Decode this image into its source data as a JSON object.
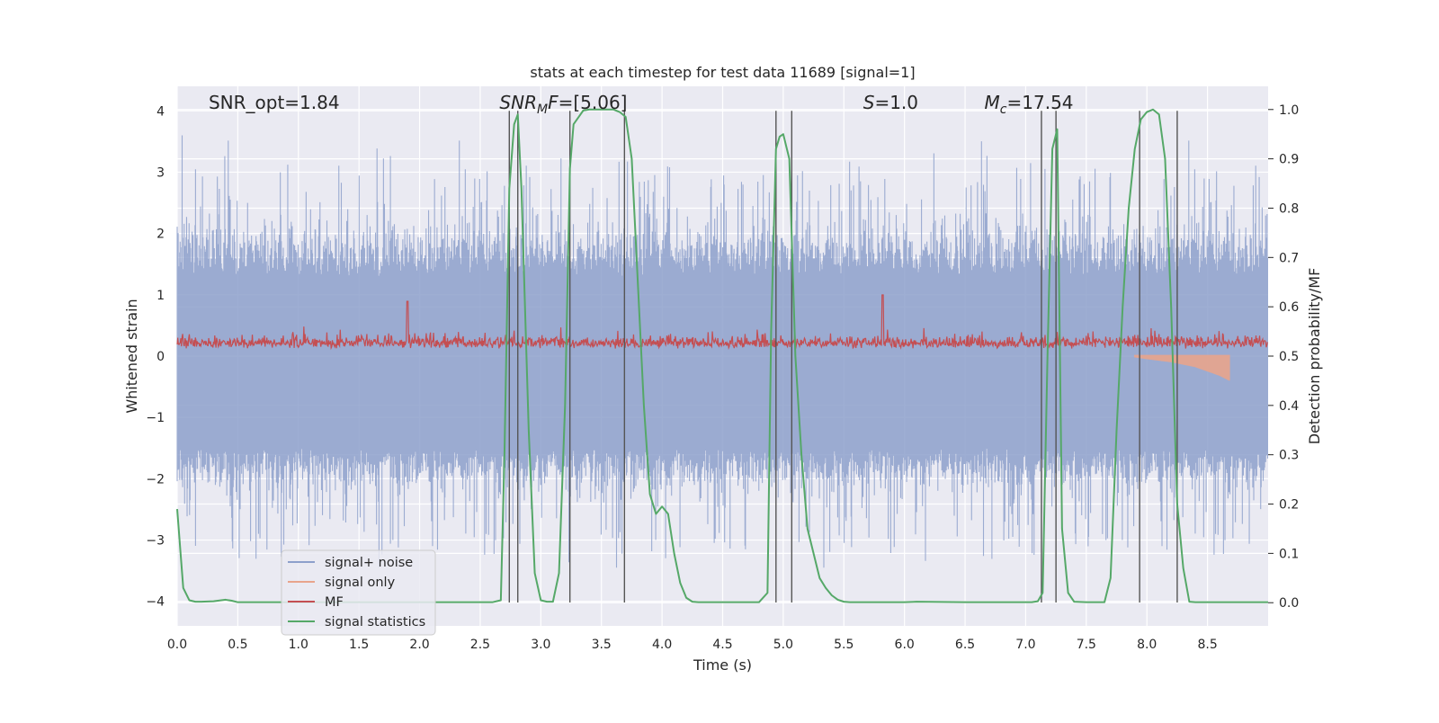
{
  "chart_data": {
    "type": "line",
    "title": "stats at each timestep for test data 11689 [signal=1]",
    "xlabel": "Time (s)",
    "ylabel": "Whitened strain",
    "y2label": "Detection probability/MF",
    "xlim": [
      0,
      9.0
    ],
    "ylim": [
      -4.4,
      4.4
    ],
    "y2lim": [
      -0.047,
      1.047
    ],
    "x_ticks": [
      0.0,
      0.5,
      1.0,
      1.5,
      2.0,
      2.5,
      3.0,
      3.5,
      4.0,
      4.5,
      5.0,
      5.5,
      6.0,
      6.5,
      7.0,
      7.5,
      8.0,
      8.5
    ],
    "x_tick_labels": [
      "0.0",
      "0.5",
      "1.0",
      "1.5",
      "2.0",
      "2.5",
      "3.0",
      "3.5",
      "4.0",
      "4.5",
      "5.0",
      "5.5",
      "6.0",
      "6.5",
      "7.0",
      "7.5",
      "8.0",
      "8.5"
    ],
    "y_ticks": [
      4,
      3,
      2,
      1,
      0,
      -1,
      -2,
      -3,
      -4
    ],
    "y_tick_labels": [
      "4",
      "3",
      "2",
      "1",
      "0",
      "−1",
      "−2",
      "−3",
      "−4"
    ],
    "y2_ticks": [
      1.0,
      0.9,
      0.8,
      0.7,
      0.6,
      0.5,
      0.4,
      0.3,
      0.2,
      0.1,
      0.0
    ],
    "y2_tick_labels": [
      "1.0",
      "0.9",
      "0.8",
      "0.7",
      "0.6",
      "0.5",
      "0.4",
      "0.3",
      "0.2",
      "0.1",
      "0.0"
    ],
    "grid": true,
    "legend": {
      "position": "lower-left",
      "entries": [
        {
          "label": "signal+ noise",
          "color": "#8da0cb"
        },
        {
          "label": "signal only",
          "color": "#e8a48c"
        },
        {
          "label": "MF",
          "color": "#c44e52"
        },
        {
          "label": "signal statistics",
          "color": "#55a868"
        }
      ]
    },
    "annotations": [
      {
        "key": "snr_opt",
        "text": "SNR_opt=1.84",
        "x": 0.2
      },
      {
        "key": "snr_mf",
        "text": "SNR_MF=[5.06]",
        "x": 2.6
      },
      {
        "key": "s",
        "text": "S=1.0",
        "x": 5.6
      },
      {
        "key": "mc",
        "text": "M_c=17.54",
        "x": 6.6
      }
    ],
    "vlines_x": [
      2.74,
      2.81,
      3.24,
      3.69,
      4.94,
      5.07,
      7.13,
      7.25,
      7.94,
      8.25
    ],
    "series": [
      {
        "name": "signal statistics",
        "axis": "right",
        "color": "#55a868",
        "x": [
          0.0,
          0.05,
          0.1,
          0.15,
          0.2,
          0.3,
          0.4,
          0.45,
          0.5,
          1.0,
          2.0,
          2.5,
          2.6,
          2.67,
          2.7,
          2.74,
          2.78,
          2.81,
          2.84,
          2.9,
          2.95,
          3.0,
          3.05,
          3.1,
          3.15,
          3.2,
          3.24,
          3.27,
          3.35,
          3.4,
          3.5,
          3.6,
          3.65,
          3.7,
          3.75,
          3.8,
          3.85,
          3.9,
          3.95,
          4.0,
          4.05,
          4.1,
          4.15,
          4.2,
          4.25,
          4.3,
          4.5,
          4.8,
          4.87,
          4.9,
          4.94,
          4.97,
          5.0,
          5.05,
          5.1,
          5.15,
          5.2,
          5.25,
          5.3,
          5.35,
          5.4,
          5.45,
          5.5,
          5.55,
          5.6,
          6.0,
          6.1,
          6.5,
          7.0,
          7.05,
          7.1,
          7.14,
          7.18,
          7.22,
          7.26,
          7.3,
          7.35,
          7.4,
          7.5,
          7.65,
          7.7,
          7.75,
          7.8,
          7.85,
          7.9,
          7.95,
          8.0,
          8.05,
          8.1,
          8.15,
          8.2,
          8.25,
          8.3,
          8.35,
          8.4,
          8.5,
          8.7,
          9.0
        ],
        "y": [
          0.19,
          0.03,
          0.005,
          0.002,
          0.002,
          0.003,
          0.006,
          0.004,
          0.001,
          0.001,
          0.001,
          0.001,
          0.001,
          0.005,
          0.3,
          0.84,
          0.97,
          0.99,
          0.84,
          0.35,
          0.06,
          0.005,
          0.002,
          0.002,
          0.06,
          0.4,
          0.88,
          0.97,
          0.998,
          1.0,
          1.0,
          1.0,
          0.995,
          0.985,
          0.9,
          0.65,
          0.4,
          0.22,
          0.18,
          0.195,
          0.18,
          0.1,
          0.04,
          0.01,
          0.002,
          0.001,
          0.001,
          0.001,
          0.02,
          0.55,
          0.92,
          0.945,
          0.95,
          0.9,
          0.5,
          0.3,
          0.15,
          0.1,
          0.05,
          0.03,
          0.015,
          0.006,
          0.002,
          0.001,
          0.001,
          0.001,
          0.002,
          0.001,
          0.001,
          0.001,
          0.003,
          0.02,
          0.5,
          0.92,
          0.96,
          0.15,
          0.02,
          0.002,
          0.001,
          0.001,
          0.05,
          0.35,
          0.6,
          0.8,
          0.92,
          0.98,
          0.995,
          1.0,
          0.99,
          0.9,
          0.6,
          0.2,
          0.07,
          0.002,
          0.001,
          0.001,
          0.001,
          0.001
        ]
      },
      {
        "name": "signal+ noise",
        "axis": "left",
        "color": "#8da0cb",
        "description_note": "",
        "amplitude_upper": [
          1.3,
          3.6,
          2.7
        ],
        "amplitude_lower": [
          -1.5,
          -3.6,
          -2.4
        ]
      },
      {
        "name": "MF",
        "axis": "right",
        "color": "#c44e52",
        "baseline": 0.5,
        "peak": 0.58
      },
      {
        "name": "signal only",
        "axis": "left",
        "color": "#e8a48c",
        "x": [
          7.9,
          8.0,
          8.2,
          8.4,
          8.5,
          8.6,
          8.68
        ],
        "y": [
          -0.02,
          -0.05,
          -0.1,
          -0.18,
          -0.25,
          -0.32,
          -0.4
        ]
      }
    ]
  }
}
